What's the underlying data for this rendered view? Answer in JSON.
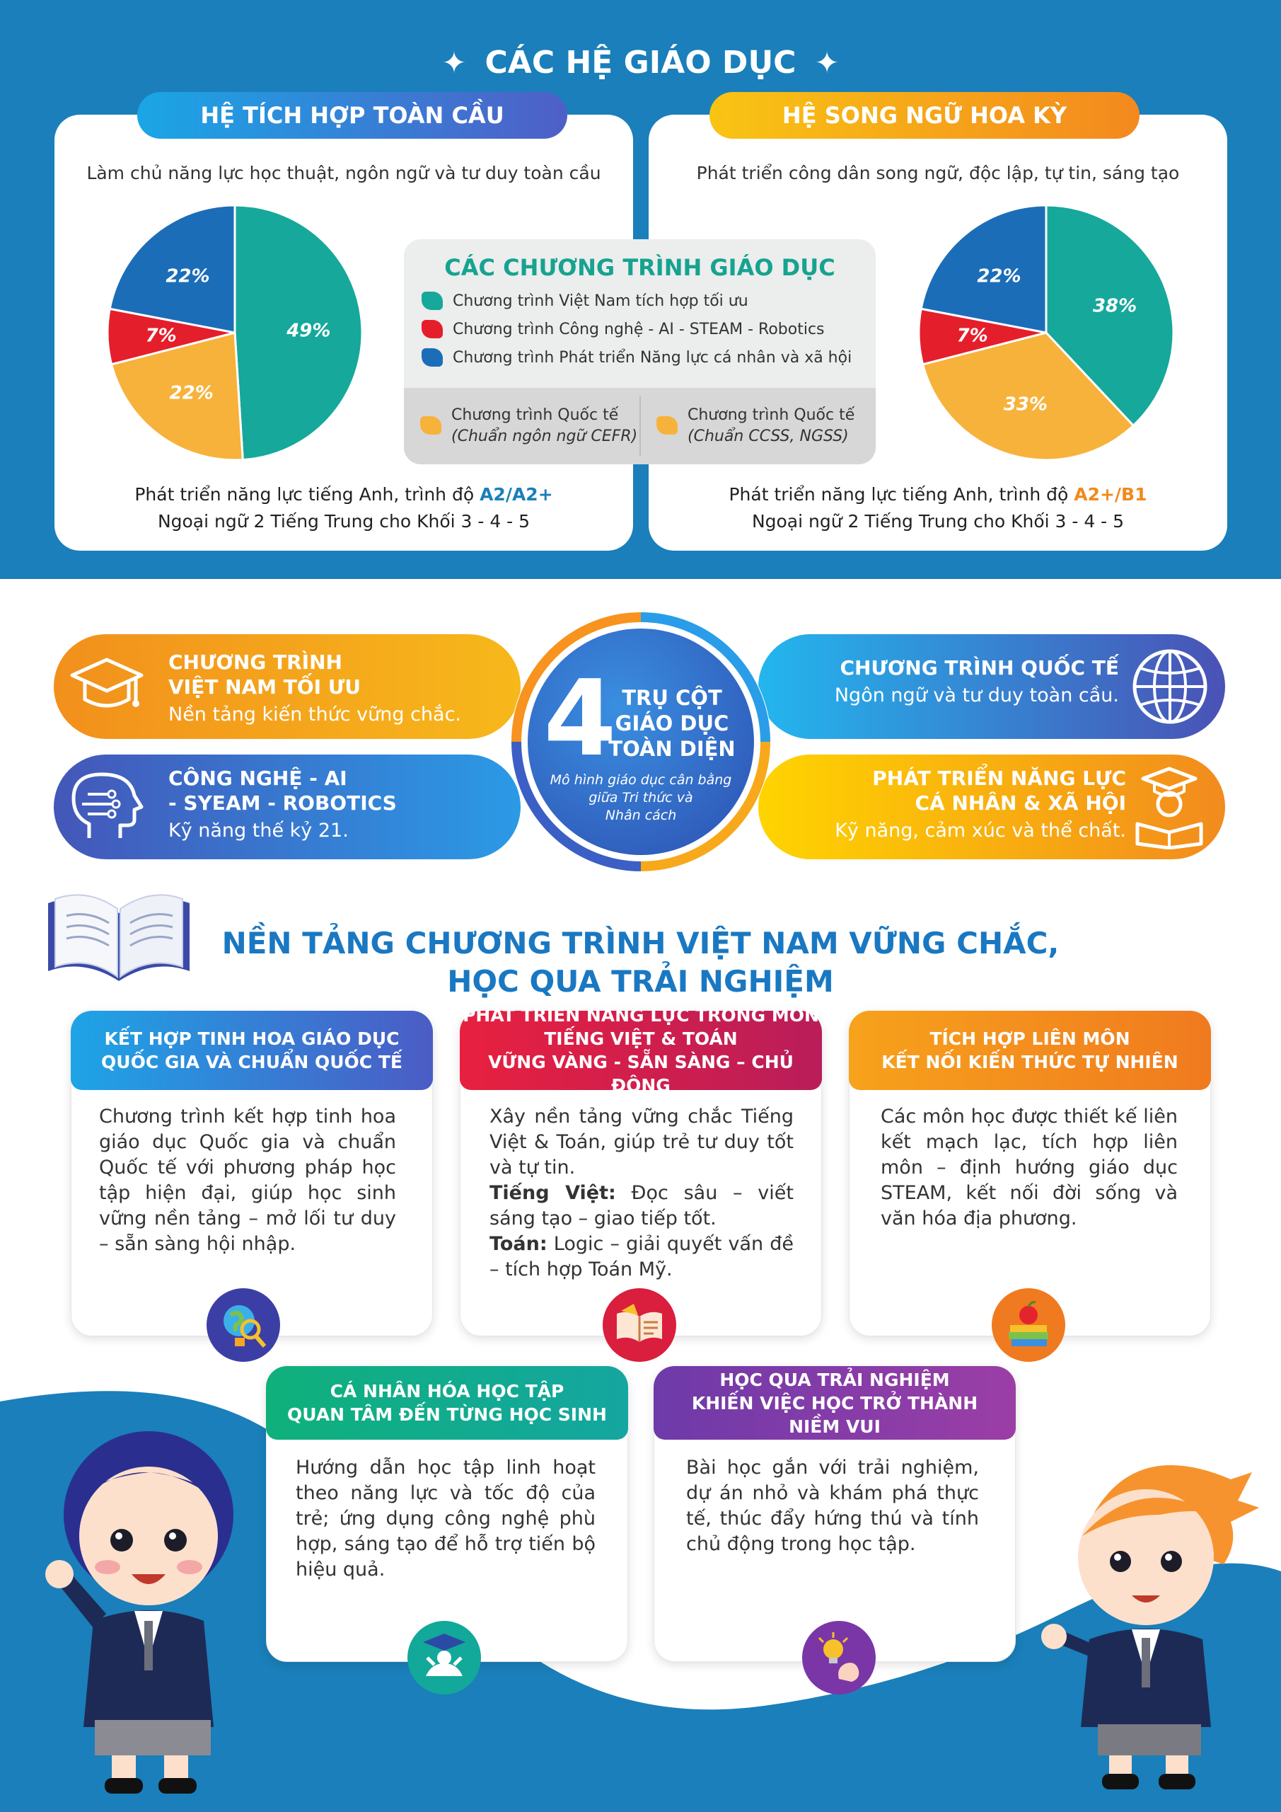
{
  "header": {
    "title": "CÁC HỆ GIÁO DỤC",
    "star": "✦"
  },
  "left_panel": {
    "tab": "HỆ TÍCH HỢP TOÀN CẦU",
    "subtitle": "Làm chủ năng lực học thuật, ngôn ngữ và tư duy toàn cầu",
    "foot_line1": "Phát triển năng lực tiếng Anh, trình độ ",
    "foot_level": "A2/A2+",
    "foot_line2": "Ngoại ngữ 2 Tiếng Trung cho Khối 3 - 4 - 5"
  },
  "right_panel": {
    "tab": "HỆ SONG NGỮ HOA KỲ",
    "subtitle": "Phát triển công dân song ngữ, độc lập, tự tin, sáng tạo",
    "foot_line1": "Phát triển năng lực tiếng Anh, trình độ ",
    "foot_level": "A2+/B1",
    "foot_line2": "Ngoại ngữ 2 Tiếng Trung cho Khối 3 - 4 - 5"
  },
  "legend": {
    "title": "CÁC CHƯƠNG TRÌNH GIÁO DỤC",
    "items": [
      {
        "label": "Chương trình Việt Nam tích hợp tối ưu",
        "color": "#16a89a"
      },
      {
        "label": "Chương trình Công nghệ - AI - STEAM - Robotics",
        "color": "#e51e2b"
      },
      {
        "label": "Chương trình Phát triển Năng lực cá nhân và xã hội",
        "color": "#1c6db8"
      }
    ],
    "intl_cefr": {
      "label": "Chương trình Quốc tế",
      "note": "(Chuẩn ngôn ngữ CEFR)",
      "color": "#f7b23b"
    },
    "intl_ccss": {
      "label": "Chương trình Quốc tế",
      "note": "(Chuẩn CCSS, NGSS)",
      "color": "#f7b23b"
    }
  },
  "chart_data": [
    {
      "type": "pie",
      "slices": [
        {
          "label": "49%",
          "value": 49,
          "color": "#16a89a"
        },
        {
          "label": "22%",
          "value": 22,
          "color": "#f7b23b"
        },
        {
          "label": "7%",
          "value": 7,
          "color": "#e51e2b"
        },
        {
          "label": "22%",
          "value": 22,
          "color": "#1c6db8"
        }
      ]
    },
    {
      "type": "pie",
      "slices": [
        {
          "label": "38%",
          "value": 38,
          "color": "#16a89a"
        },
        {
          "label": "33%",
          "value": 33,
          "color": "#f7b23b"
        },
        {
          "label": "7%",
          "value": 7,
          "color": "#e51e2b"
        },
        {
          "label": "22%",
          "value": 22,
          "color": "#1c6db8"
        }
      ]
    }
  ],
  "pillars": {
    "hub": {
      "number": "4",
      "head": "TRỤ CỘT\nGIÁO DỤC\nTOÀN DIỆN",
      "desc": "Mô hình giáo dục cân bằng\ngiữa Tri thức và\nNhân cách"
    },
    "vn": {
      "head": "CHƯƠNG TRÌNH\nVIỆT NAM TỐI ƯU",
      "desc": "Nền tảng kiến thức vững chắc.",
      "icon": "graduation-cap-icon"
    },
    "tech": {
      "head": "CÔNG NGHỆ - AI\n- SYEAM - ROBOTICS",
      "desc": "Kỹ năng thế kỷ 21.",
      "icon": "ai-head-icon"
    },
    "intl": {
      "head": "CHƯƠNG TRÌNH QUỐC TẾ",
      "desc": "Ngôn ngữ và tư duy toàn cầu.",
      "icon": "globe-icon"
    },
    "dev": {
      "head": "PHÁT TRIỂN NĂNG LỰC\nCÁ NHÂN & XÃ HỘI",
      "desc": "Kỹ năng, cảm xúc và thể chất.",
      "icon": "reading-student-icon"
    }
  },
  "foundation": {
    "title": "NỀN TẢNG CHƯƠNG TRÌNH VIỆT NAM VỮNG CHẮC,\nHỌC QUA TRẢI NGHIỆM",
    "cards": [
      {
        "head": "KẾT HỢP TINH HOA GIÁO DỤC\nQUỐC GIA VÀ CHUẨN QUỐC TẾ",
        "body": "Chương trình kết hợp tinh hoa giáo dục Quốc gia và chuẩn Quốc tế với phương pháp học tập hiện đại, giúp học sinh vững nền tảng – mở lối tư duy – sẵn sàng hội nhập.",
        "icon": "globe-magnifier-icon"
      },
      {
        "head": "PHÁT TRIỂN NĂNG LỰC TRONG MÔN\nTIẾNG VIỆT & TOÁN\nVỮNG VÀNG - SẴN SÀNG – CHỦ ĐỘNG",
        "intro": "Xây nền tảng vững chắc Tiếng Việt & Toán, giúp trẻ tư duy tốt và tự tin.",
        "viet_label": "Tiếng Việt:",
        "viet_text": " Đọc sâu – viết sáng tạo – giao tiếp tốt.",
        "math_label": "Toán:",
        "math_text": " Logic – giải quyết vấn đề – tích hợp Toán Mỹ.",
        "icon": "open-book-icon"
      },
      {
        "head": "TÍCH HỢP LIÊN MÔN\nKẾT NỐI KIẾN THỨC TỰ NHIÊN",
        "body": "Các môn học được thiết kế liên kết mạch lạc, tích hợp liên môn – định hướng giáo dục STEAM, kết nối đời sống và văn hóa địa phương.",
        "icon": "apple-books-icon"
      },
      {
        "head": "CÁ NHÂN HÓA HỌC TẬP\nQUAN TÂM ĐẾN TỪNG HỌC SINH",
        "body": "Hướng dẫn học tập linh hoạt theo năng lực và tốc độ của trẻ; ứng dụng công nghệ phù hợp, sáng tạo để hỗ trợ tiến bộ hiệu quả.",
        "icon": "graduate-student-icon"
      },
      {
        "head": "HỌC QUA TRẢI NGHIỆM\nKHIẾN VIỆC HỌC TRỞ THÀNH\nNIỀM VUI",
        "body": "Bài học gắn với trải nghiệm, dự án nhỏ và khám phá thực tế, thúc đẩy hứng thú và tính chủ động trong học tập.",
        "icon": "lightbulb-hand-icon"
      }
    ]
  }
}
